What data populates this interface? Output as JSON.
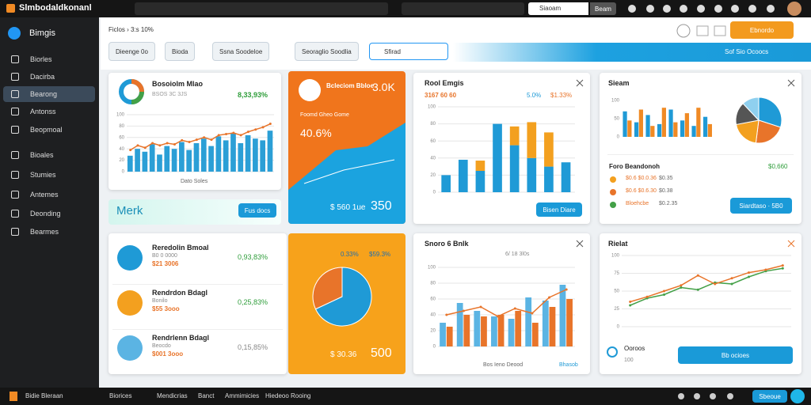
{
  "topbar": {
    "brand": "Slmbodaldkonanl",
    "search": "Siaoam",
    "search_button": "Beam"
  },
  "sidebar": {
    "title": "Bimgis",
    "items": [
      "Biorles",
      "Dacirba",
      "Bearong",
      "Antonss",
      "Beopmoal",
      "Bioales",
      "Stumies",
      "Antemes",
      "Deonding",
      "Bearmes"
    ]
  },
  "header": {
    "breadcrumb": "Ficlos › 3:s 10%",
    "button": "Ebnordo"
  },
  "filters": {
    "buttons": [
      "Dieenge 0o",
      "Bioda",
      "Ssna Soodeloe",
      "Seoraglio Soodlia"
    ],
    "dropdown": "Sfirad",
    "banner": "Sof Sio Ocoocs"
  },
  "traffic": {
    "title": "Bosoiolm Mlao",
    "subtitle": "BSOS 3C 3JS",
    "stat": "8,33,93%",
    "footer": "Dato Soles",
    "chart": {
      "ylim": [
        0,
        100
      ],
      "yticks": [
        0,
        20,
        40,
        60,
        80,
        100
      ],
      "grid": true,
      "stacked": false,
      "series": [
        {
          "type": "bar",
          "color": "#2b9fd6",
          "values": [
            28,
            40,
            35,
            48,
            30,
            45,
            40,
            52,
            38,
            50,
            58,
            45,
            62,
            55,
            68,
            50,
            64,
            58,
            55,
            72
          ]
        },
        {
          "type": "line",
          "color": "#e8742a",
          "values": [
            38,
            46,
            42,
            50,
            46,
            50,
            48,
            55,
            52,
            56,
            60,
            56,
            64,
            66,
            68,
            64,
            70,
            74,
            78,
            84
          ]
        }
      ]
    }
  },
  "banner": {
    "title": "Merk",
    "button": "Fus docs"
  },
  "promo": {
    "name": "Bcleciom Bbloe",
    "value": "3.0K",
    "caption": "Foomd Gheo Gome",
    "percent": "40.6%",
    "total": "$ 560 1ue",
    "big": "350"
  },
  "revenue": {
    "title": "Rool Emgis",
    "subtitle": "3167 60 60",
    "stat1": "5.0%",
    "stat2": "$1.33%",
    "button": "Bisen Diare",
    "chart": {
      "ylim": [
        0,
        100
      ],
      "yticks": [
        0,
        20,
        40,
        60,
        80,
        100
      ],
      "grid": true,
      "stacked": true,
      "series": [
        {
          "type": "bar",
          "color": "#1f9ad6",
          "values": [
            20,
            38,
            25,
            80,
            55,
            40,
            30,
            35
          ]
        },
        {
          "type": "bar",
          "color": "#f3a01f",
          "values": [
            0,
            0,
            12,
            0,
            22,
            42,
            40,
            0
          ]
        }
      ]
    }
  },
  "summary": {
    "title": "Sieam",
    "chart": {
      "ylim": [
        0,
        100
      ],
      "yticks": [
        0,
        50,
        100
      ],
      "grid": false,
      "stacked": false,
      "series": [
        {
          "type": "bar",
          "color": "#1f9ad6",
          "values": [
            70,
            40,
            60,
            35,
            75,
            45,
            30,
            55
          ]
        },
        {
          "type": "bar",
          "color": "#f08a24",
          "values": [
            45,
            75,
            30,
            80,
            40,
            65,
            80,
            35
          ]
        }
      ]
    },
    "pie": {
      "values": [
        30,
        22,
        20,
        16,
        12
      ],
      "colors": [
        "#1f9ad6",
        "#e8742a",
        "#f3a01f",
        "#555",
        "#8fd0ef"
      ]
    },
    "list_title": "Foro Beandonoh",
    "list_total": "$0,660",
    "rows": [
      {
        "label": "$0.6 $0.0.36",
        "value": "$0.35"
      },
      {
        "label": "$0.6 $0.6.30",
        "value": "$0.38"
      },
      {
        "label": "Bloehcbe",
        "value": "$0.2.35"
      }
    ],
    "button": "Siardtaso · 5B0"
  },
  "people": [
    {
      "name": "Reredolin Bmoal",
      "sub": "B0 0 0000",
      "amount": "$21 3006",
      "pct": "0,93,83%"
    },
    {
      "name": "Rendrdon Bdagl",
      "sub": "Bonilo",
      "amount": "$55 3ooo",
      "pct": "0,25,83%"
    },
    {
      "name": "Rendrlenn Bdagl",
      "sub": "Beocdo",
      "amount": "$001 3ooo",
      "pct": "0,15,85%"
    }
  ],
  "share": {
    "stat1": "0.33%",
    "stat2": "$59.3%",
    "total": "$ 30.36",
    "big": "500",
    "pie": {
      "values": [
        68,
        32
      ],
      "colors": [
        "#1f9ad6",
        "#e8742a"
      ]
    }
  },
  "sales": {
    "title": "Snoro 6 Bnlk",
    "subtitle": "6/ 18 3l0s",
    "footer": "Bos Ieno Deood",
    "link": "Bhasob",
    "chart": {
      "ylim": [
        0,
        100
      ],
      "yticks": [
        0,
        20,
        40,
        60,
        80,
        100
      ],
      "grid": true,
      "stacked": false,
      "series": [
        {
          "type": "bar",
          "color": "#5bb4e3",
          "values": [
            30,
            55,
            45,
            38,
            35,
            62,
            58,
            78
          ]
        },
        {
          "type": "bar",
          "color": "#e8742a",
          "values": [
            25,
            40,
            38,
            40,
            45,
            30,
            50,
            60
          ]
        },
        {
          "type": "line",
          "color": "#e8742a",
          "values": [
            40,
            45,
            50,
            38,
            48,
            42,
            62,
            72
          ]
        }
      ]
    }
  },
  "trend": {
    "title": "Rielat",
    "progress_label": "Ooroos",
    "progress_value": "100",
    "button": "Bb ocioes",
    "chart": {
      "ylim": [
        0,
        100
      ],
      "yticks": [
        0,
        25,
        50,
        75,
        100
      ],
      "grid": true,
      "stacked": false,
      "series": [
        {
          "type": "line",
          "color": "#43a047",
          "values": [
            30,
            40,
            45,
            55,
            52,
            62,
            60,
            70,
            78,
            82
          ]
        },
        {
          "type": "line",
          "color": "#e8742a",
          "values": [
            35,
            42,
            50,
            58,
            72,
            60,
            68,
            76,
            80,
            86
          ]
        }
      ]
    }
  },
  "bottombar": {
    "brand": "Bidie Bleraan",
    "items": [
      "Biorices",
      "Mendicrias",
      "Banct",
      "Ammimicies",
      "Hiedeoo Rooing"
    ],
    "button": "Sbeoue"
  }
}
